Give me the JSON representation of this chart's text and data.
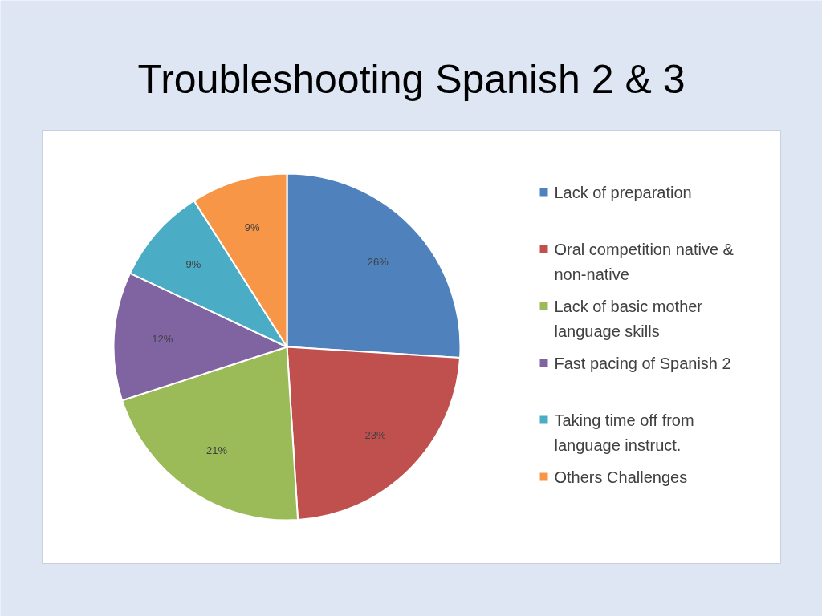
{
  "chart_data": {
    "type": "pie",
    "title": "Troubleshooting Spanish 2 & 3",
    "categories": [
      "Lack of preparation",
      "Oral competition native & non-native",
      "Lack of basic mother language skills",
      "Fast pacing of Spanish 2",
      "Taking time off from language instruct.",
      "Others Challenges"
    ],
    "values": [
      26,
      23,
      21,
      12,
      9,
      9
    ],
    "colors": [
      "#4f81bd",
      "#c0504d",
      "#9bbb59",
      "#8064a2",
      "#4bacc6",
      "#f79646"
    ],
    "value_labels": [
      "26%",
      "23%",
      "21%",
      "12%",
      "9%",
      "9%"
    ],
    "legend": "right"
  }
}
